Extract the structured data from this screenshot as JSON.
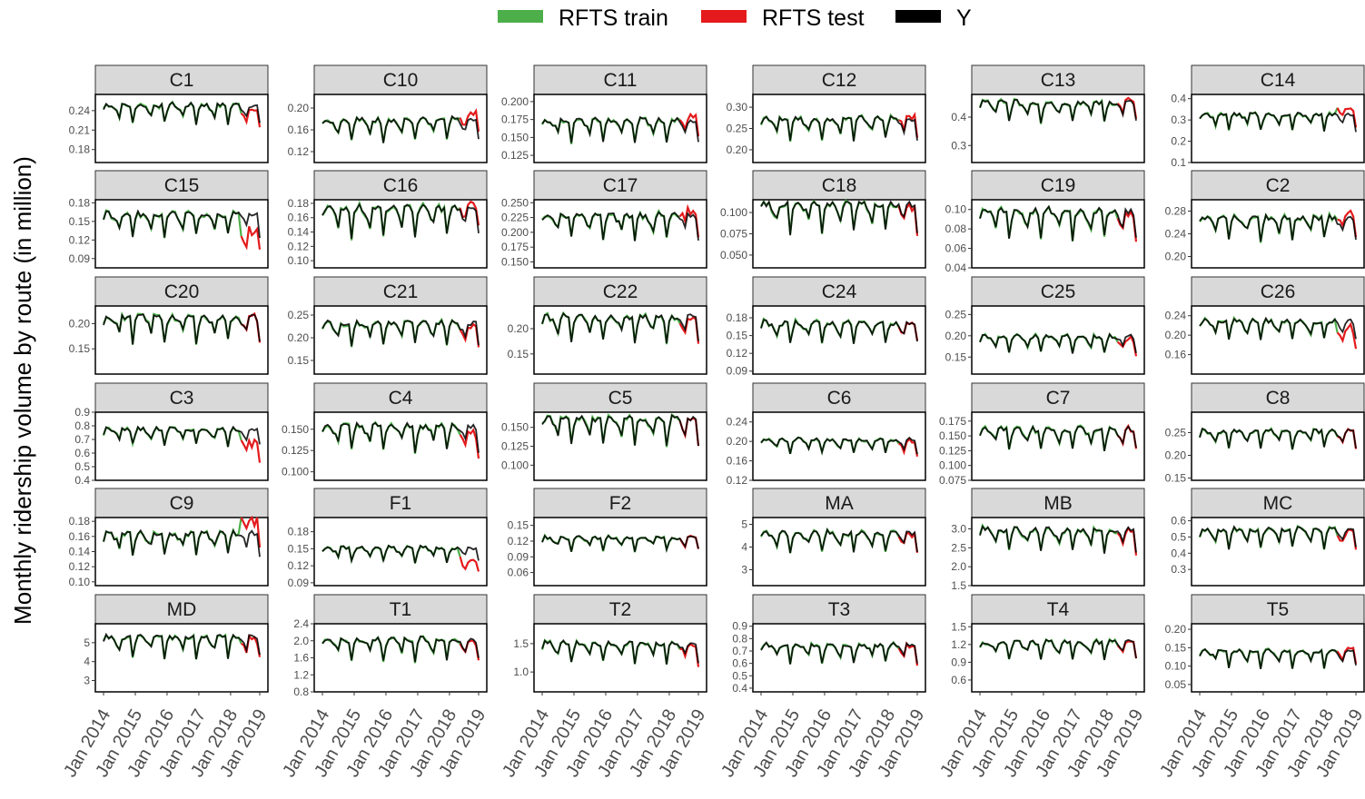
{
  "chart_data": {
    "type": "line",
    "ylabel": "Monthly ridership volume by route (in million)",
    "legend": {
      "placement": "top",
      "entries": [
        {
          "name": "RFTS train",
          "color": "#4daf4a"
        },
        {
          "name": "RFTS test",
          "color": "#e41a1c"
        },
        {
          "name": "Y",
          "color": "#000000"
        }
      ]
    },
    "x_ticks": [
      "Jan 2014",
      "Jan 2015",
      "Jan 2016",
      "Jan 2017",
      "Jan 2018",
      "Jan 2019"
    ],
    "months": 60,
    "train_months": 52,
    "panels": [
      {
        "name": "C1",
        "ticks": [
          "0.18",
          "0.21",
          "0.24"
        ],
        "ylim": [
          0.16,
          0.265
        ],
        "base": 0.235,
        "amp": 0.03,
        "test_shift": -0.01
      },
      {
        "name": "C10",
        "ticks": [
          "0.12",
          "0.16",
          "0.20"
        ],
        "ylim": [
          0.1,
          0.225
        ],
        "base": 0.16,
        "amp": 0.04,
        "test_shift": 0.015
      },
      {
        "name": "C11",
        "ticks": [
          "0.125",
          "0.150",
          "0.175",
          "0.200"
        ],
        "ylim": [
          0.115,
          0.21
        ],
        "base": 0.16,
        "amp": 0.03,
        "test_shift": 0.01
      },
      {
        "name": "C12",
        "ticks": [
          "0.20",
          "0.25",
          "0.30"
        ],
        "ylim": [
          0.17,
          0.33
        ],
        "base": 0.25,
        "amp": 0.05,
        "test_shift": 0.01
      },
      {
        "name": "C13",
        "ticks": [
          "0.3",
          "0.4"
        ],
        "ylim": [
          0.24,
          0.48
        ],
        "base": 0.42,
        "amp": 0.07,
        "test_shift": 0.01
      },
      {
        "name": "C14",
        "ticks": [
          "0.1",
          "0.2",
          "0.3",
          "0.4"
        ],
        "ylim": [
          0.1,
          0.42
        ],
        "base": 0.29,
        "amp": 0.08,
        "test_shift": 0.04
      },
      {
        "name": "C15",
        "ticks": [
          "0.09",
          "0.12",
          "0.15",
          "0.18"
        ],
        "ylim": [
          0.075,
          0.185
        ],
        "base": 0.145,
        "amp": 0.035,
        "test_shift": -0.04
      },
      {
        "name": "C16",
        "ticks": [
          "0.10",
          "0.12",
          "0.14",
          "0.16",
          "0.18"
        ],
        "ylim": [
          0.09,
          0.185
        ],
        "base": 0.155,
        "amp": 0.04,
        "test_shift": 0.01
      },
      {
        "name": "C17",
        "ticks": [
          "0.150",
          "0.175",
          "0.200",
          "0.225",
          "0.250"
        ],
        "ylim": [
          0.14,
          0.255
        ],
        "base": 0.21,
        "amp": 0.04,
        "test_shift": 0.01
      },
      {
        "name": "C18",
        "ticks": [
          "0.050",
          "0.075",
          "0.100"
        ],
        "ylim": [
          0.035,
          0.115
        ],
        "base": 0.095,
        "amp": 0.035,
        "test_shift": -0.005
      },
      {
        "name": "C19",
        "ticks": [
          "0.04",
          "0.06",
          "0.08",
          "0.10"
        ],
        "ylim": [
          0.04,
          0.11
        ],
        "base": 0.085,
        "amp": 0.03,
        "test_shift": -0.005
      },
      {
        "name": "C2",
        "ticks": [
          "0.20",
          "0.24",
          "0.28"
        ],
        "ylim": [
          0.18,
          0.3
        ],
        "base": 0.25,
        "amp": 0.04,
        "test_shift": 0.01
      },
      {
        "name": "C20",
        "ticks": [
          "0.15",
          "0.20"
        ],
        "ylim": [
          0.1,
          0.235
        ],
        "base": 0.19,
        "amp": 0.05,
        "test_shift": 0.0
      },
      {
        "name": "C21",
        "ticks": [
          "0.15",
          "0.20",
          "0.25"
        ],
        "ylim": [
          0.12,
          0.27
        ],
        "base": 0.21,
        "amp": 0.05,
        "test_shift": -0.01
      },
      {
        "name": "C22",
        "ticks": [
          "0.15",
          "0.20"
        ],
        "ylim": [
          0.11,
          0.245
        ],
        "base": 0.2,
        "amp": 0.05,
        "test_shift": -0.01
      },
      {
        "name": "C24",
        "ticks": [
          "0.09",
          "0.12",
          "0.15",
          "0.18"
        ],
        "ylim": [
          0.085,
          0.2
        ],
        "base": 0.155,
        "amp": 0.035,
        "test_shift": 0.0
      },
      {
        "name": "C25",
        "ticks": [
          "0.15",
          "0.20",
          "0.25"
        ],
        "ylim": [
          0.11,
          0.27
        ],
        "base": 0.18,
        "amp": 0.04,
        "test_shift": -0.01
      },
      {
        "name": "C26",
        "ticks": [
          "0.16",
          "0.20",
          "0.24"
        ],
        "ylim": [
          0.12,
          0.26
        ],
        "base": 0.21,
        "amp": 0.04,
        "test_shift": -0.02
      },
      {
        "name": "C3",
        "ticks": [
          "0.4",
          "0.5",
          "0.6",
          "0.7",
          "0.8",
          "0.9"
        ],
        "ylim": [
          0.4,
          0.9
        ],
        "base": 0.72,
        "amp": 0.12,
        "test_shift": -0.14
      },
      {
        "name": "C4",
        "ticks": [
          "0.100",
          "0.125",
          "0.150"
        ],
        "ylim": [
          0.09,
          0.17
        ],
        "base": 0.14,
        "amp": 0.03,
        "test_shift": -0.01
      },
      {
        "name": "C5",
        "ticks": [
          "0.100",
          "0.125",
          "0.150"
        ],
        "ylim": [
          0.08,
          0.17
        ],
        "base": 0.145,
        "amp": 0.035,
        "test_shift": 0.0
      },
      {
        "name": "C6",
        "ticks": [
          "0.12",
          "0.16",
          "0.20",
          "0.24"
        ],
        "ylim": [
          0.12,
          0.26
        ],
        "base": 0.19,
        "amp": 0.03,
        "test_shift": -0.005
      },
      {
        "name": "C7",
        "ticks": [
          "0.075",
          "0.100",
          "0.125",
          "0.150",
          "0.175"
        ],
        "ylim": [
          0.075,
          0.19
        ],
        "base": 0.145,
        "amp": 0.035,
        "test_shift": 0.0
      },
      {
        "name": "C8",
        "ticks": [
          "0.15",
          "0.20",
          "0.25"
        ],
        "ylim": [
          0.145,
          0.295
        ],
        "base": 0.235,
        "amp": 0.04,
        "test_shift": 0.0
      },
      {
        "name": "C9",
        "ticks": [
          "0.10",
          "0.12",
          "0.14",
          "0.16",
          "0.18"
        ],
        "ylim": [
          0.095,
          0.185
        ],
        "base": 0.15,
        "amp": 0.03,
        "test_shift": 0.025
      },
      {
        "name": "F1",
        "ticks": [
          "0.09",
          "0.12",
          "0.15",
          "0.18"
        ],
        "ylim": [
          0.085,
          0.205
        ],
        "base": 0.14,
        "amp": 0.025,
        "test_shift": -0.03
      },
      {
        "name": "F2",
        "ticks": [
          "0.06",
          "0.09",
          "0.12",
          "0.15"
        ],
        "ylim": [
          0.035,
          0.165
        ],
        "base": 0.115,
        "amp": 0.025,
        "test_shift": 0.0
      },
      {
        "name": "MA",
        "ticks": [
          "3",
          "4",
          "5"
        ],
        "ylim": [
          2.3,
          5.3
        ],
        "base": 4.2,
        "amp": 0.9,
        "test_shift": -0.1
      },
      {
        "name": "MB",
        "ticks": [
          "1.5",
          "2.0",
          "2.5",
          "3.0"
        ],
        "ylim": [
          1.5,
          3.3
        ],
        "base": 2.7,
        "amp": 0.6,
        "test_shift": -0.05
      },
      {
        "name": "MC",
        "ticks": [
          "0.3",
          "0.4",
          "0.5",
          "0.6"
        ],
        "ylim": [
          0.2,
          0.62
        ],
        "base": 0.49,
        "amp": 0.12,
        "test_shift": -0.02
      },
      {
        "name": "MD",
        "ticks": [
          "3",
          "4",
          "5"
        ],
        "ylim": [
          2.4,
          6.0
        ],
        "base": 4.8,
        "amp": 1.1,
        "test_shift": -0.2
      },
      {
        "name": "T1",
        "ticks": [
          "0.8",
          "1.2",
          "1.6",
          "2.0",
          "2.4"
        ],
        "ylim": [
          0.8,
          2.4
        ],
        "base": 1.8,
        "amp": 0.5,
        "test_shift": -0.05
      },
      {
        "name": "T2",
        "ticks": [
          "1.0",
          "1.5"
        ],
        "ylim": [
          0.65,
          1.85
        ],
        "base": 1.35,
        "amp": 0.35,
        "test_shift": -0.05
      },
      {
        "name": "T3",
        "ticks": [
          "0.4",
          "0.5",
          "0.6",
          "0.7",
          "0.8",
          "0.9"
        ],
        "ylim": [
          0.37,
          0.92
        ],
        "base": 0.68,
        "amp": 0.15,
        "test_shift": -0.02
      },
      {
        "name": "T4",
        "ticks": [
          "0.6",
          "0.9",
          "1.2",
          "1.5"
        ],
        "ylim": [
          0.4,
          1.55
        ],
        "base": 1.1,
        "amp": 0.3,
        "test_shift": -0.02
      },
      {
        "name": "T5",
        "ticks": [
          "0.05",
          "0.10",
          "0.15",
          "0.20"
        ],
        "ylim": [
          0.03,
          0.215
        ],
        "base": 0.12,
        "amp": 0.045,
        "test_shift": 0.01
      }
    ]
  }
}
